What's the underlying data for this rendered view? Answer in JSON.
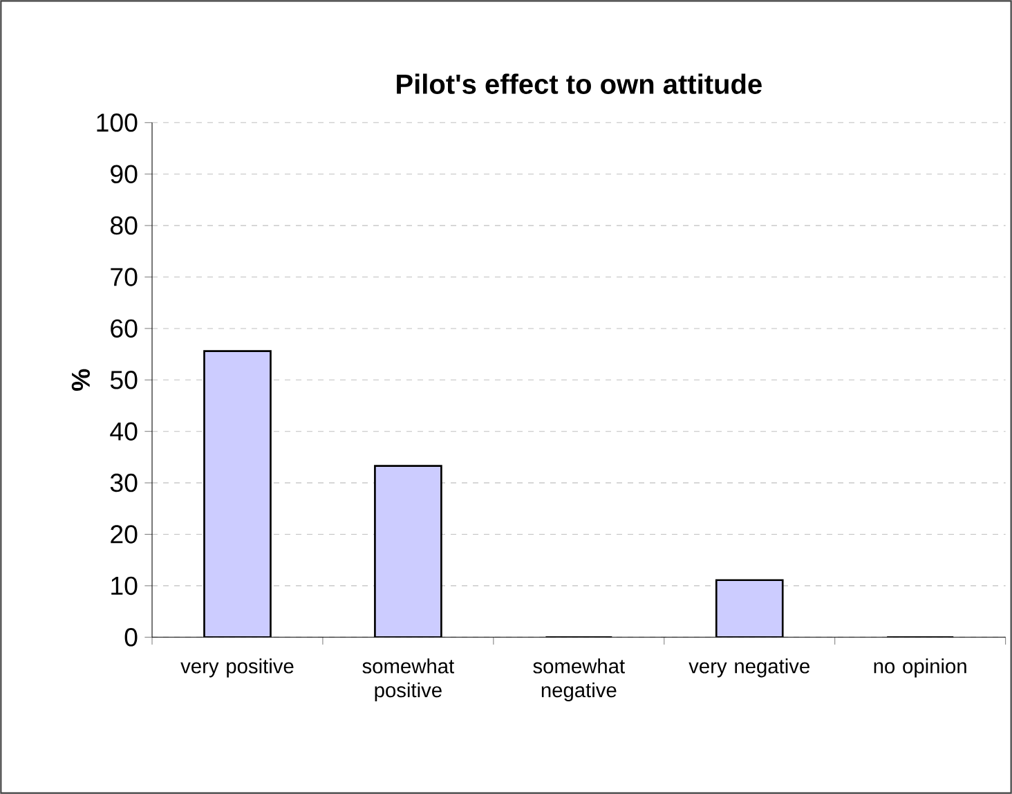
{
  "chart_data": {
    "type": "bar",
    "title": "Pilot's effect to own attitude",
    "ylabel": "%",
    "categories": [
      "very positive",
      "somewhat positive",
      "somewhat negative",
      "very negative",
      "no opinion"
    ],
    "values": [
      55.6,
      33.3,
      0,
      11.1,
      0
    ],
    "color": "#ccccff",
    "ylim": [
      0,
      100
    ],
    "yticks": [
      0,
      10,
      20,
      30,
      40,
      50,
      60,
      70,
      80,
      90,
      100
    ],
    "grid": "y"
  }
}
